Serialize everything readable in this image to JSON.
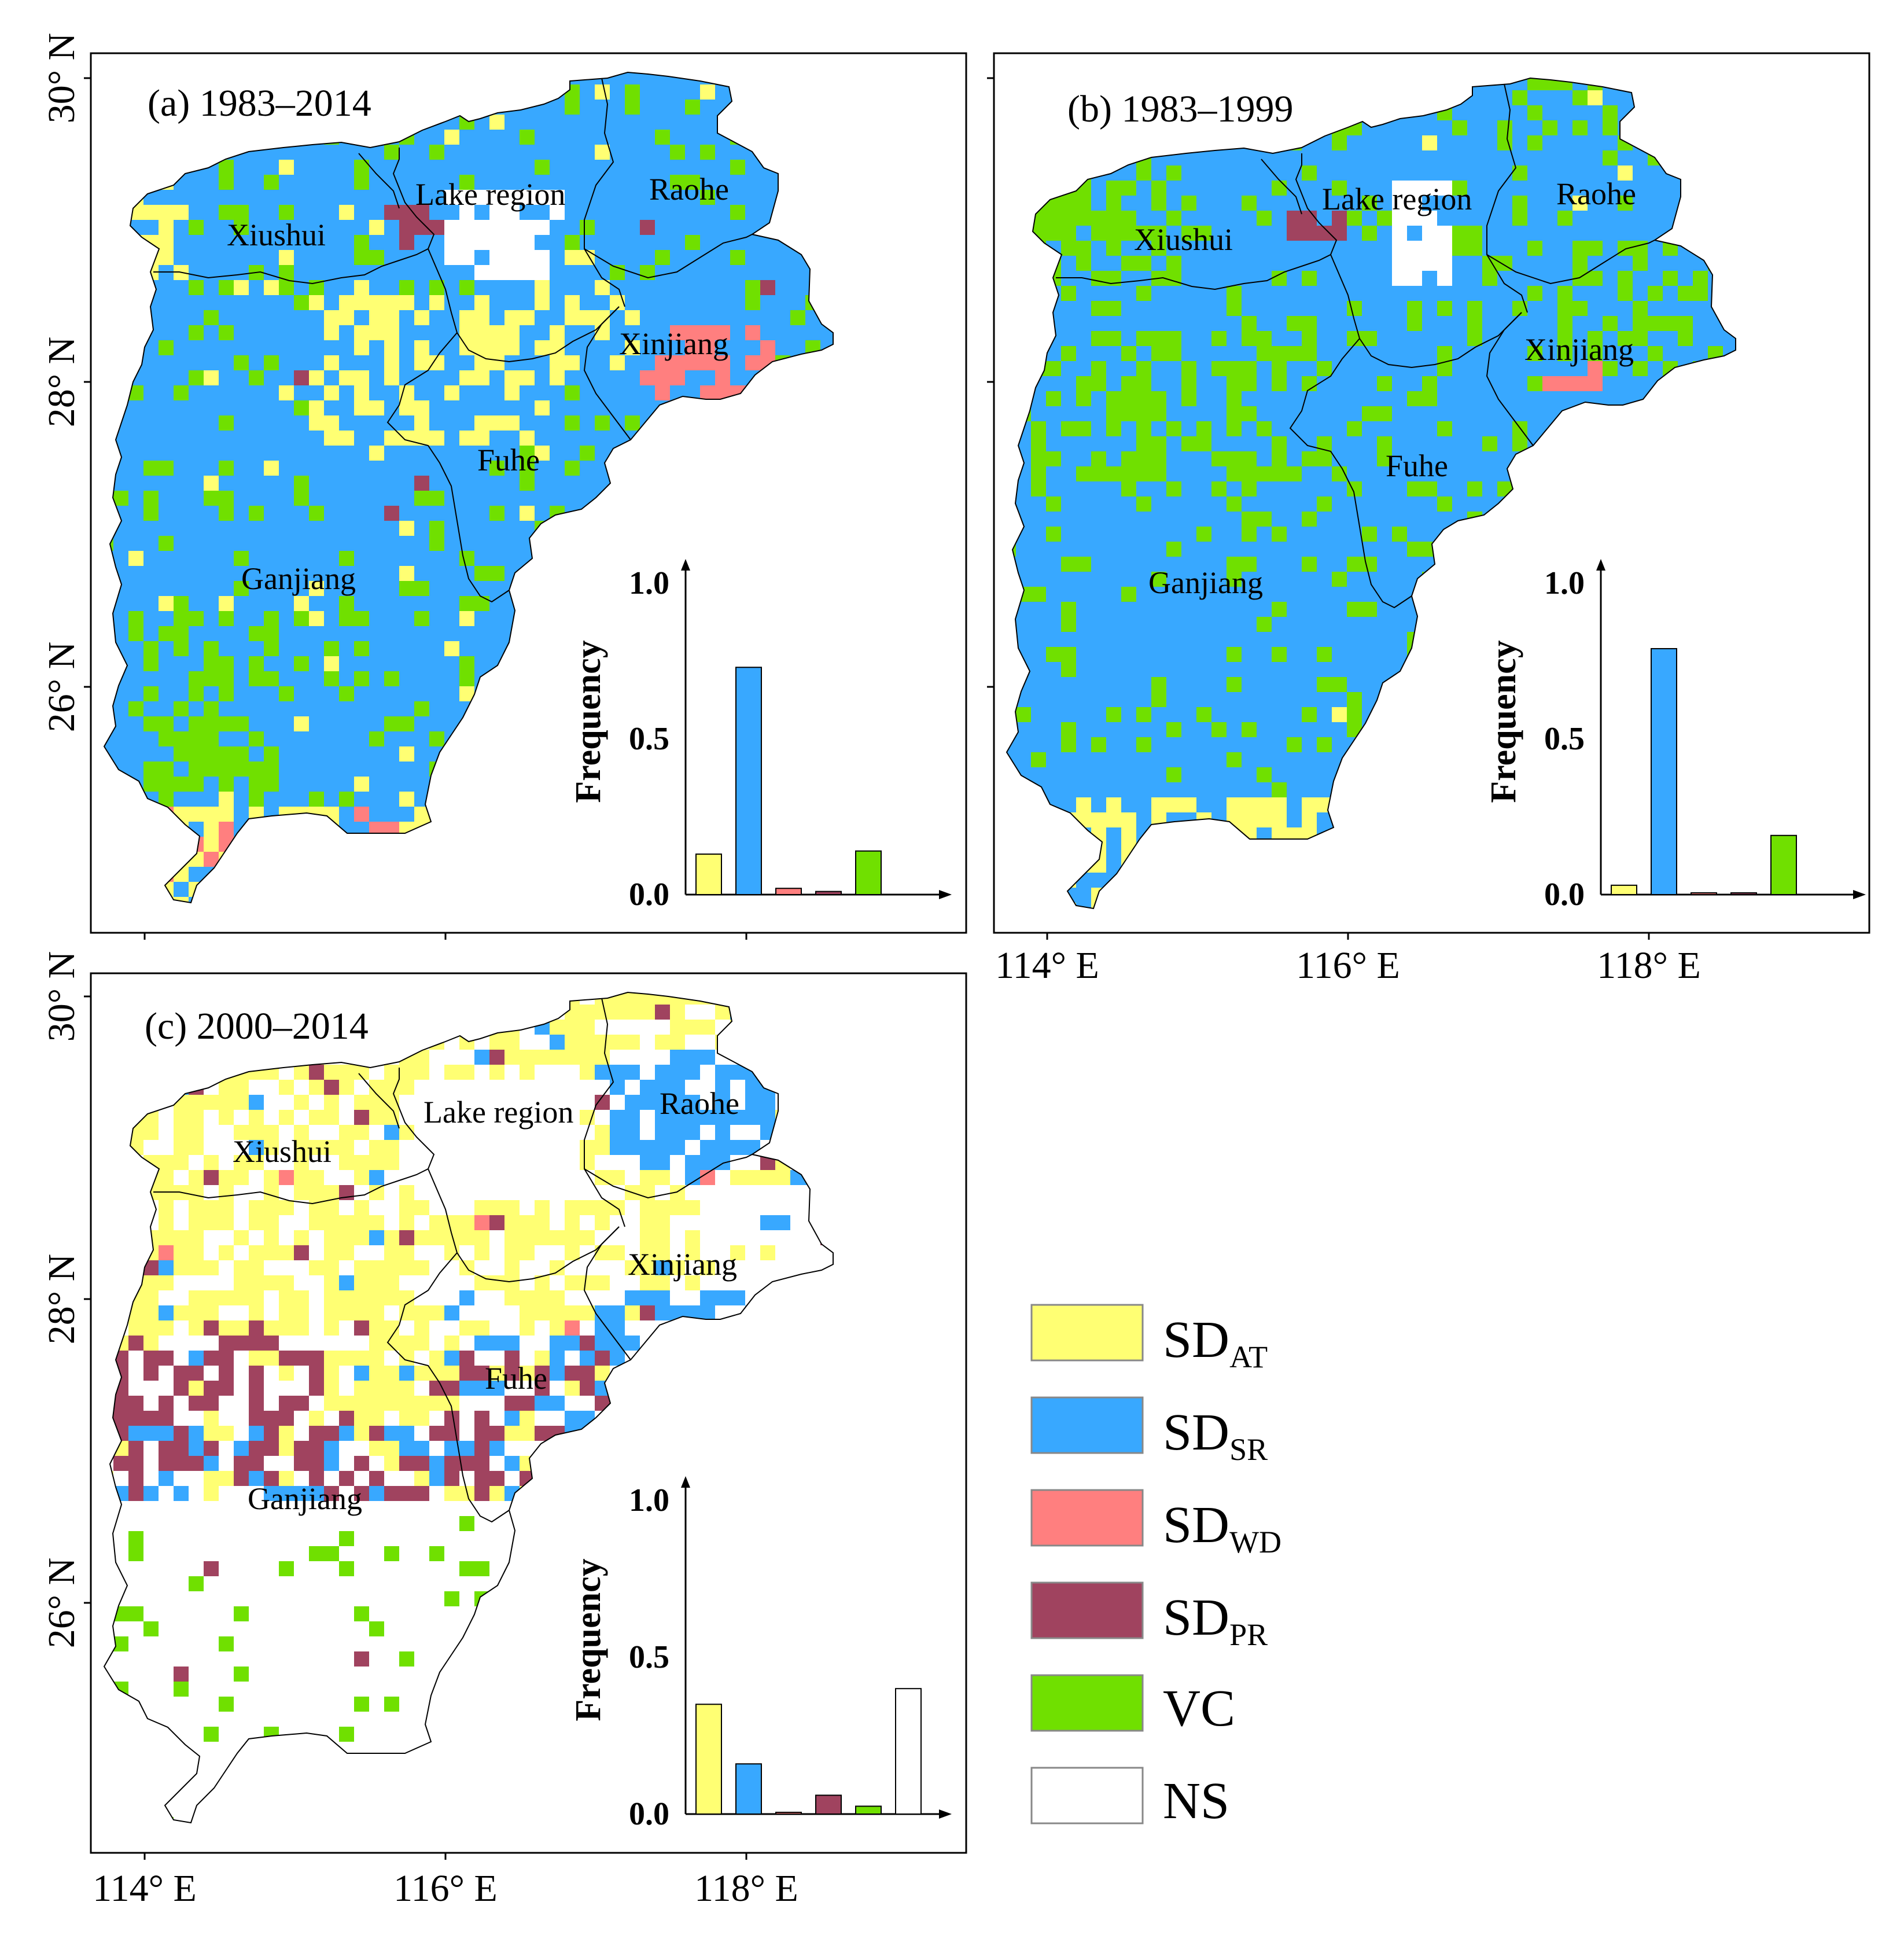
{
  "colors": {
    "SD_AT": "#FFFF73",
    "SD_SR": "#38A8FF",
    "SD_WD": "#FF7F7F",
    "SD_PR": "#A0435F",
    "VC": "#70E000",
    "NS": "#FFFFFF"
  },
  "axes": {
    "lat_labels": [
      "30° N",
      "28° N",
      "26° N"
    ],
    "lon_labels": [
      "114° E",
      "116° E",
      "118° E"
    ]
  },
  "regions": [
    "Xiushui",
    "Lake region",
    "Raohe",
    "Xinjiang",
    "Fuhe",
    "Ganjiang"
  ],
  "legend": [
    {
      "key": "SD_AT",
      "base": "SD",
      "sub": "AT"
    },
    {
      "key": "SD_SR",
      "base": "SD",
      "sub": "SR"
    },
    {
      "key": "SD_WD",
      "base": "SD",
      "sub": "WD"
    },
    {
      "key": "SD_PR",
      "base": "SD",
      "sub": "PR"
    },
    {
      "key": "VC",
      "base": "VC",
      "sub": ""
    },
    {
      "key": "NS",
      "base": "NS",
      "sub": ""
    }
  ],
  "panels": [
    {
      "id": "a",
      "title": "(a) 1983–2014",
      "dominant": "SD_SR",
      "secondary": [
        "VC",
        "SD_AT"
      ]
    },
    {
      "id": "b",
      "title": "(b) 1983–1999",
      "dominant": "SD_SR",
      "secondary": [
        "VC"
      ]
    },
    {
      "id": "c",
      "title": "(c) 2000–2014",
      "dominant": "NS",
      "secondary": [
        "SD_AT",
        "SD_PR",
        "SD_SR"
      ]
    }
  ],
  "chart_data": [
    {
      "type": "bar",
      "panel": "a",
      "ylabel": "Frequency",
      "ylim": [
        0,
        1
      ],
      "yticks": [
        "0.0",
        "0.5",
        "1.0"
      ],
      "categories": [
        "SD_AT",
        "SD_SR",
        "SD_WD",
        "SD_PR",
        "VC"
      ],
      "values": [
        0.13,
        0.73,
        0.02,
        0.01,
        0.14
      ]
    },
    {
      "type": "bar",
      "panel": "b",
      "ylabel": "Frequency",
      "ylim": [
        0,
        1
      ],
      "yticks": [
        "0.0",
        "0.5",
        "1.0"
      ],
      "categories": [
        "SD_AT",
        "SD_SR",
        "SD_WD",
        "SD_PR",
        "VC"
      ],
      "values": [
        0.03,
        0.79,
        0.005,
        0.005,
        0.19
      ]
    },
    {
      "type": "bar",
      "panel": "c",
      "ylabel": "Frequency",
      "ylim": [
        0,
        1
      ],
      "yticks": [
        "0.0",
        "0.5",
        "1.0"
      ],
      "categories": [
        "SD_AT",
        "SD_SR",
        "SD_WD",
        "SD_PR",
        "VC",
        "NS"
      ],
      "values": [
        0.35,
        0.16,
        0.005,
        0.06,
        0.025,
        0.4
      ]
    }
  ]
}
